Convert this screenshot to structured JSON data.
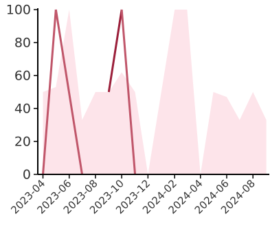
{
  "chart_data": {
    "type": "line",
    "title": "",
    "xlabel": "",
    "ylabel": "",
    "ylim": [
      0,
      100
    ],
    "yticks": [
      0,
      20,
      40,
      60,
      80,
      100
    ],
    "xlim": [
      "2023-03-20",
      "2024-09-08"
    ],
    "xticks": [
      "2023-04",
      "2023-06",
      "2023-08",
      "2023-10",
      "2023-12",
      "2024-02",
      "2024-04",
      "2024-06",
      "2024-08"
    ],
    "grid": false,
    "legend": "none",
    "colors": {
      "area": "#fde4ea",
      "line_dark": "#9b1f3a",
      "line_light": "#c0566a",
      "axis": "#000000"
    },
    "area_series": {
      "x": [
        "2023-04-01",
        "2023-05-01",
        "2023-06-01",
        "2023-07-01",
        "2023-08-01",
        "2023-09-01",
        "2023-10-01",
        "2023-11-01",
        "2023-12-01",
        "2024-01-01",
        "2024-02-01",
        "2024-03-01",
        "2024-04-01",
        "2024-05-01",
        "2024-06-01",
        "2024-07-01",
        "2024-08-01",
        "2024-09-01"
      ],
      "values": [
        50,
        53,
        100,
        33,
        50,
        50,
        62,
        50,
        0,
        50,
        100,
        100,
        0,
        50,
        47,
        33,
        50,
        33
      ]
    },
    "line_series": [
      {
        "x": [
          "2023-04-01",
          "2023-05-01"
        ],
        "values": [
          0,
          100
        ],
        "style": "light"
      },
      {
        "x": [
          "2023-05-01",
          "2023-07-01"
        ],
        "values": [
          100,
          0
        ],
        "style": "light"
      },
      {
        "x": [
          "2023-09-01",
          "2023-10-01"
        ],
        "values": [
          50,
          100
        ],
        "style": "dark"
      },
      {
        "x": [
          "2023-10-01",
          "2023-11-01"
        ],
        "values": [
          100,
          0
        ],
        "style": "light"
      }
    ]
  }
}
